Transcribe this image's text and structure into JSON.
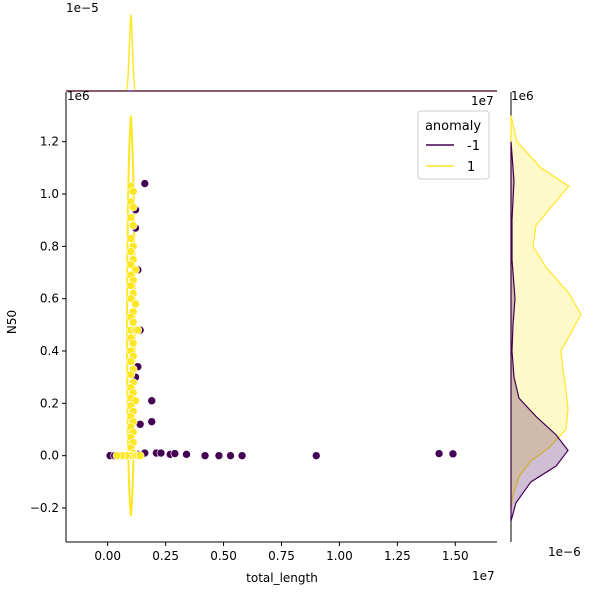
{
  "chart_data": {
    "type": "scatter",
    "title": "",
    "xlabel": "total_length",
    "ylabel": "N50",
    "x_offset_text": "1e7",
    "y_offset_text": "1e6",
    "xlim": [
      -0.18,
      1.68
    ],
    "ylim": [
      -0.33,
      1.39
    ],
    "x_ticks": [
      "0.00",
      "0.25",
      "0.50",
      "0.75",
      "1.00",
      "1.25",
      "1.50"
    ],
    "x_tick_values": [
      0.0,
      0.25,
      0.5,
      0.75,
      1.0,
      1.25,
      1.5
    ],
    "y_ticks": [
      "−0.2",
      "0.0",
      "0.2",
      "0.4",
      "0.6",
      "0.8",
      "1.0",
      "1.2"
    ],
    "y_tick_values": [
      -0.2,
      0.0,
      0.2,
      0.4,
      0.6,
      0.8,
      1.0,
      1.2
    ],
    "marginal_top": {
      "offset_text": "1e−5",
      "peak_x": 0.1,
      "peak_height": 1.0
    },
    "marginal_right": {
      "offset_text": "1e6",
      "bottom_offset_text": "1e−6"
    },
    "legend": {
      "title": "anomaly",
      "placement": "top-right",
      "entries": [
        {
          "label": "-1",
          "color": "#440154"
        },
        {
          "label": "1",
          "color": "#fde725"
        }
      ]
    },
    "colors": {
      "anomaly": "#440154",
      "normal": "#fde725"
    },
    "series": [
      {
        "name": "-1",
        "color": "#440154",
        "points": [
          [
            0.01,
            0.0
          ],
          [
            0.03,
            0.0
          ],
          [
            0.05,
            0.0
          ],
          [
            0.07,
            0.0
          ],
          [
            0.11,
            0.0
          ],
          [
            0.13,
            0.005
          ],
          [
            0.16,
            0.01
          ],
          [
            0.21,
            0.01
          ],
          [
            0.23,
            0.01
          ],
          [
            0.27,
            0.005
          ],
          [
            0.29,
            0.008
          ],
          [
            0.34,
            0.005
          ],
          [
            0.42,
            0.0
          ],
          [
            0.48,
            0.0
          ],
          [
            0.53,
            0.0
          ],
          [
            0.58,
            0.0
          ],
          [
            0.9,
            0.0
          ],
          [
            1.43,
            0.008
          ],
          [
            1.49,
            0.007
          ],
          [
            0.16,
            1.04
          ],
          [
            0.12,
            0.94
          ],
          [
            0.12,
            0.87
          ],
          [
            0.13,
            0.71
          ],
          [
            0.14,
            0.48
          ],
          [
            0.13,
            0.34
          ],
          [
            0.12,
            0.3
          ],
          [
            0.12,
            0.21
          ],
          [
            0.19,
            0.21
          ],
          [
            0.19,
            0.13
          ],
          [
            0.14,
            0.12
          ],
          [
            0.12,
            0.58
          ]
        ]
      },
      {
        "name": "1",
        "color": "#fde725",
        "points": [
          [
            0.1,
            1.03
          ],
          [
            0.11,
            1.01
          ],
          [
            0.1,
            0.97
          ],
          [
            0.11,
            0.95
          ],
          [
            0.1,
            0.91
          ],
          [
            0.11,
            0.88
          ],
          [
            0.1,
            0.83
          ],
          [
            0.11,
            0.8
          ],
          [
            0.1,
            0.78
          ],
          [
            0.11,
            0.75
          ],
          [
            0.1,
            0.73
          ],
          [
            0.12,
            0.71
          ],
          [
            0.1,
            0.69
          ],
          [
            0.11,
            0.67
          ],
          [
            0.1,
            0.65
          ],
          [
            0.11,
            0.62
          ],
          [
            0.1,
            0.6
          ],
          [
            0.12,
            0.58
          ],
          [
            0.11,
            0.55
          ],
          [
            0.1,
            0.53
          ],
          [
            0.11,
            0.51
          ],
          [
            0.1,
            0.48
          ],
          [
            0.12,
            0.48
          ],
          [
            0.13,
            0.48
          ],
          [
            0.1,
            0.45
          ],
          [
            0.11,
            0.43
          ],
          [
            0.1,
            0.4
          ],
          [
            0.11,
            0.38
          ],
          [
            0.1,
            0.36
          ],
          [
            0.11,
            0.33
          ],
          [
            0.1,
            0.31
          ],
          [
            0.11,
            0.28
          ],
          [
            0.1,
            0.26
          ],
          [
            0.11,
            0.24
          ],
          [
            0.1,
            0.22
          ],
          [
            0.12,
            0.21
          ],
          [
            0.1,
            0.19
          ],
          [
            0.11,
            0.17
          ],
          [
            0.1,
            0.15
          ],
          [
            0.11,
            0.13
          ],
          [
            0.1,
            0.11
          ],
          [
            0.11,
            0.09
          ],
          [
            0.1,
            0.07
          ],
          [
            0.11,
            0.05
          ],
          [
            0.1,
            0.03
          ],
          [
            0.11,
            0.01
          ],
          [
            0.09,
            0.0
          ],
          [
            0.1,
            0.0
          ],
          [
            0.12,
            0.0
          ],
          [
            0.13,
            0.0
          ],
          [
            0.14,
            0.0
          ],
          [
            0.08,
            0.0
          ],
          [
            0.06,
            0.0
          ],
          [
            0.04,
            0.0
          ]
        ]
      }
    ]
  }
}
